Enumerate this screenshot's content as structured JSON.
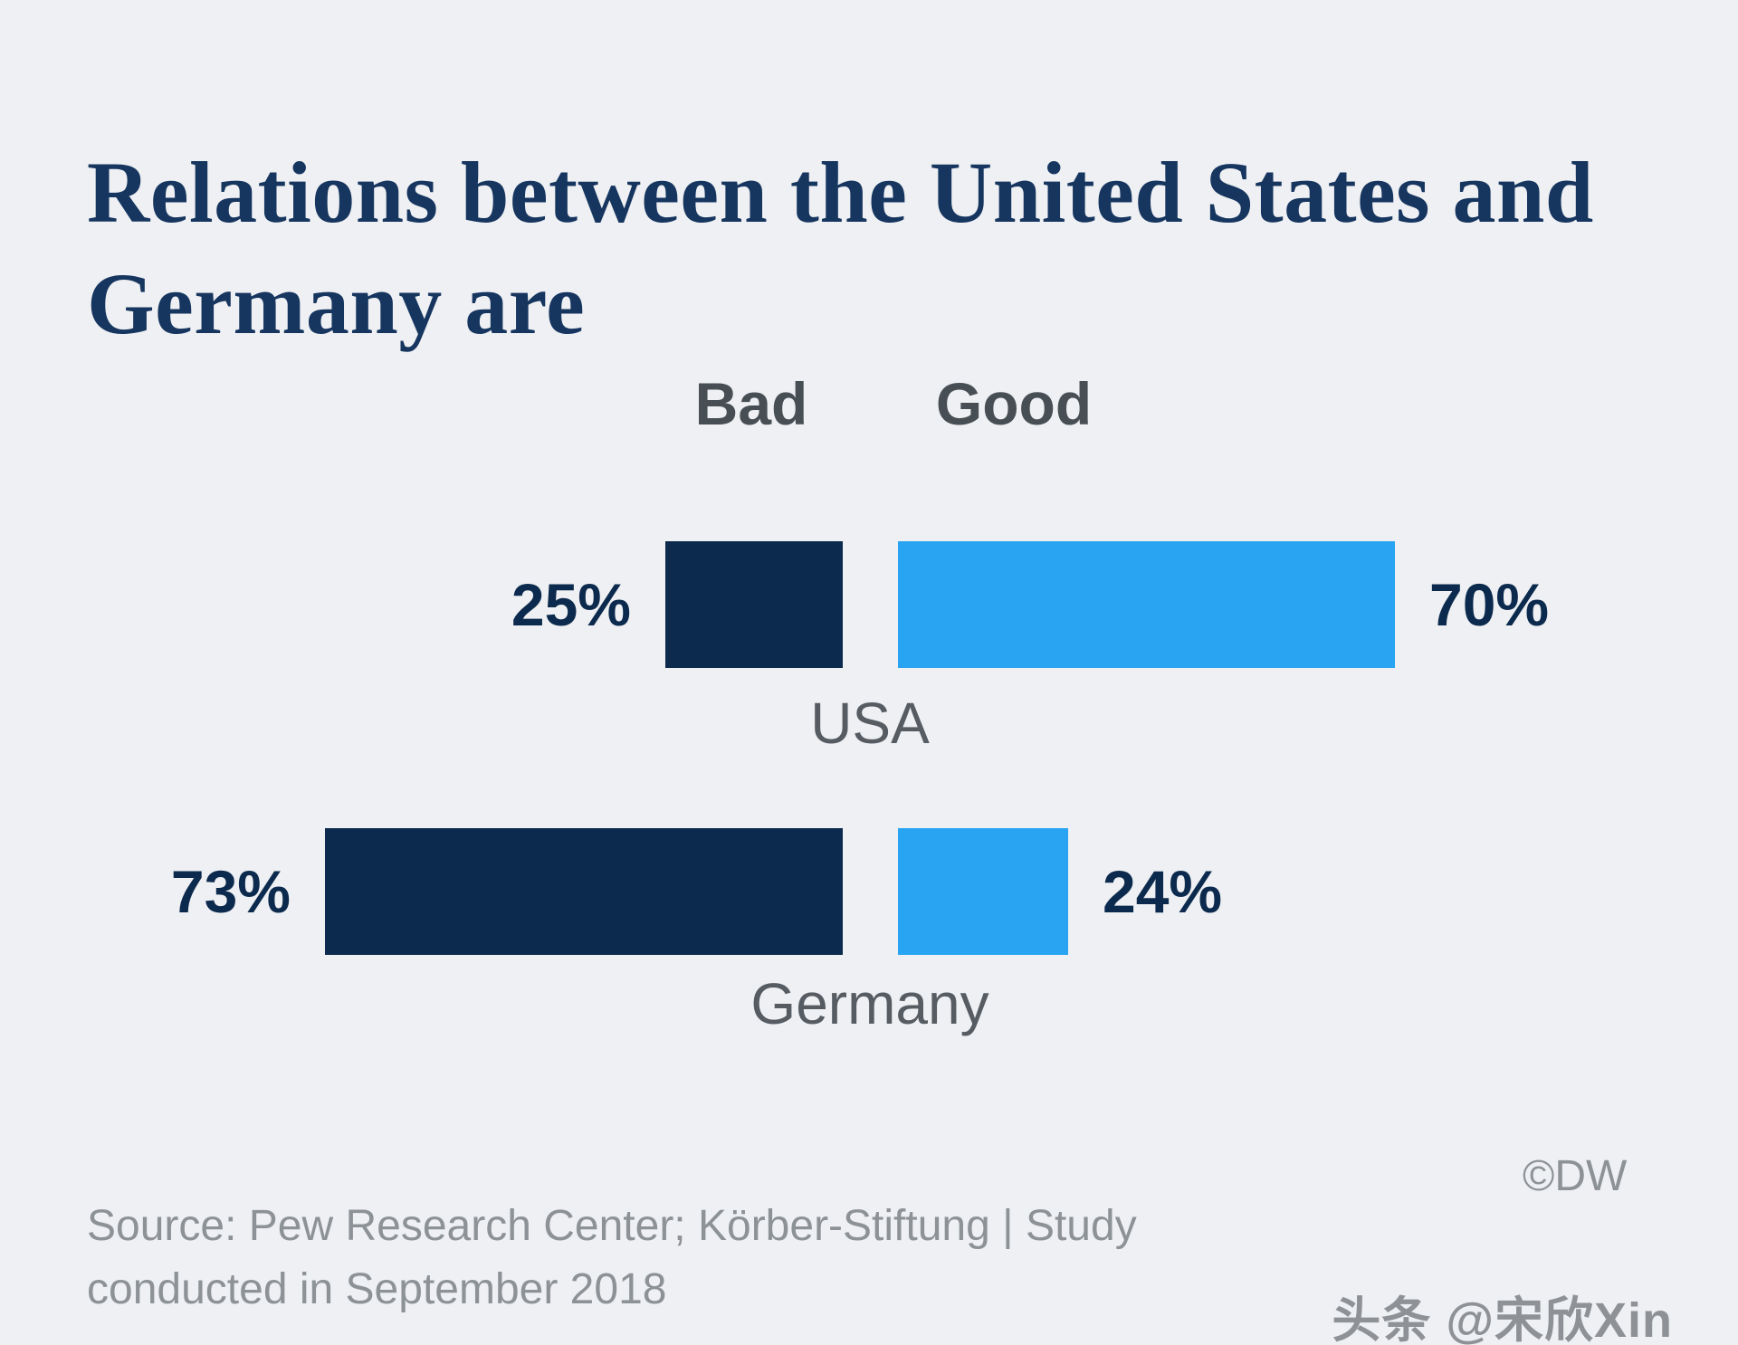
{
  "title": "Relations between the United States and Germany are",
  "chart_data": {
    "type": "bar",
    "orientation": "horizontal-diverging",
    "categories": [
      "USA",
      "Germany"
    ],
    "series": [
      {
        "name": "Bad",
        "values": [
          25,
          73
        ],
        "labels": [
          "25%",
          "73%"
        ],
        "color": "#0c2a4d"
      },
      {
        "name": "Good",
        "values": [
          70,
          24
        ],
        "labels": [
          "70%",
          "24%"
        ],
        "color": "#29a4f2"
      }
    ],
    "value_suffix": "%",
    "axis_range": [
      0,
      100
    ],
    "grid": false,
    "legend_position": "top-center-as-column-headers"
  },
  "source": {
    "text": "Source: Pew Research Center; Körber-Stiftung | Study conducted in September 2018",
    "copyright": "©DW"
  },
  "watermark": "头条 @宋欣Xin",
  "colors": {
    "background": "#eef0f3",
    "title": "#16355f",
    "bad_bar": "#0c2a4d",
    "good_bar": "#29a4f2",
    "source_text": "#8d9297"
  }
}
